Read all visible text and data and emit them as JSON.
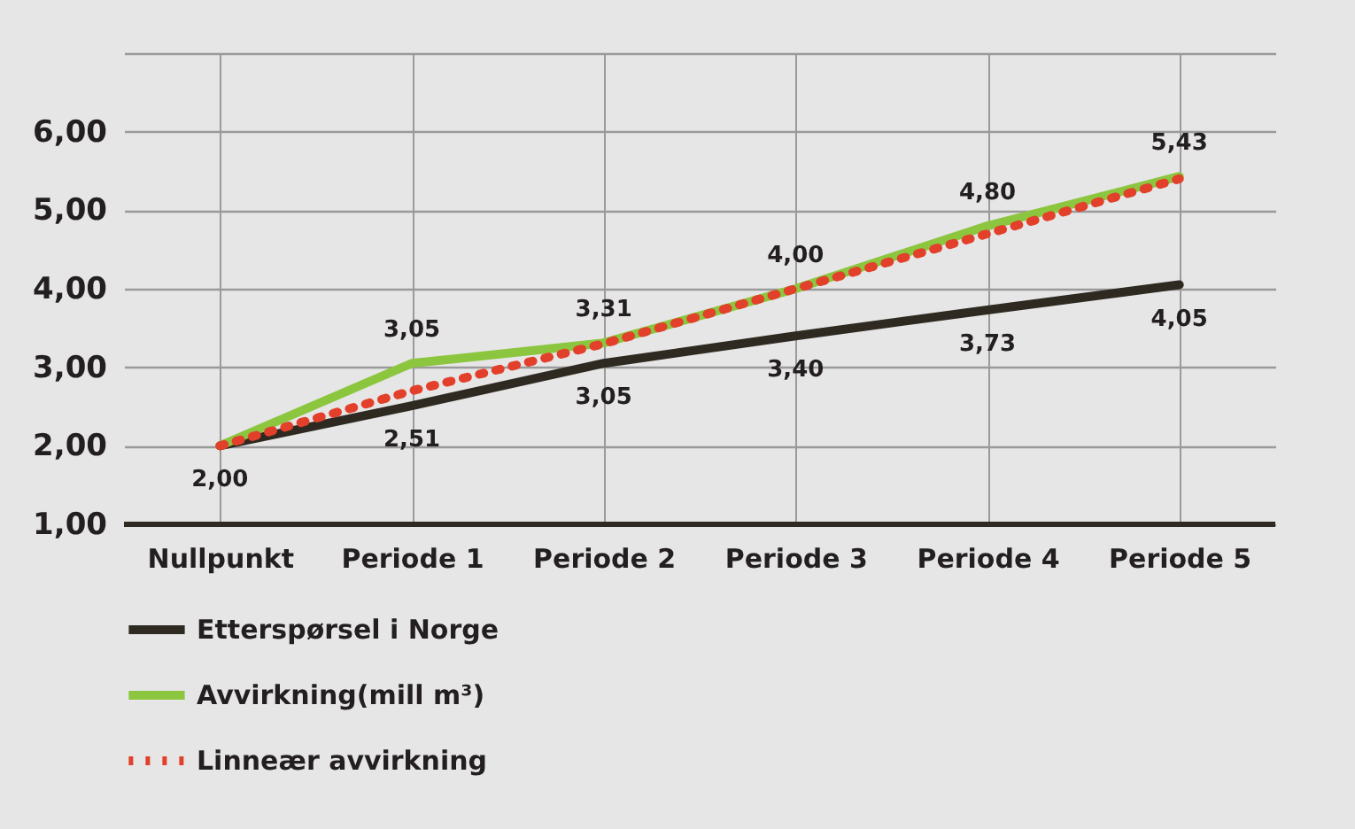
{
  "chart_data": {
    "type": "line",
    "categories": [
      "Nullpunkt",
      "Periode 1",
      "Periode 2",
      "Periode 3",
      "Periode 4",
      "Periode 5"
    ],
    "series": [
      {
        "name": "Etterspørsel i Norge",
        "color": "#2e2a22",
        "line_style": "solid",
        "values": [
          2.0,
          2.51,
          3.05,
          3.4,
          3.73,
          4.05
        ],
        "value_labels": [
          "2,00",
          "2,51",
          "3,05",
          "3,40",
          "3,73",
          "4,05"
        ]
      },
      {
        "name": "Avvirkning(mill m³)",
        "color": "#8cc63f",
        "line_style": "solid",
        "values": [
          2.0,
          3.05,
          3.31,
          4.0,
          4.8,
          5.43
        ],
        "value_labels": [
          null,
          "3,05",
          "3,31",
          "4,00",
          "4,80",
          "5,43"
        ]
      },
      {
        "name": "Linneær avvirkning",
        "color": "#e2402a",
        "line_style": "dotted",
        "values": [
          2.0,
          2.7,
          3.3,
          4.0,
          4.7,
          5.4
        ]
      }
    ],
    "ylim": [
      1,
      7
    ],
    "yticks": [
      {
        "value": 1,
        "label": "1,00"
      },
      {
        "value": 2,
        "label": "2,00"
      },
      {
        "value": 3,
        "label": "3,00"
      },
      {
        "value": 4,
        "label": "4,00"
      },
      {
        "value": 5,
        "label": "5,00"
      },
      {
        "value": 6,
        "label": "6,00"
      },
      {
        "value": 7,
        "label": null
      }
    ],
    "grid": true,
    "legend": "bottom",
    "marker": "none"
  }
}
